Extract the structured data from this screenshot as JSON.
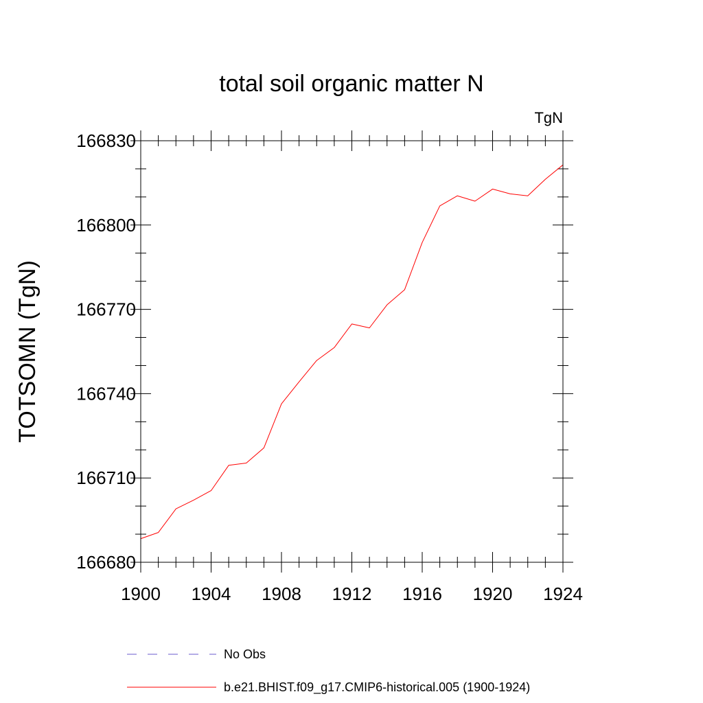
{
  "chart_data": {
    "type": "line",
    "title": "total soil organic matter N",
    "units_label": "TgN",
    "ylabel": "TOTSOMN  (TgN)",
    "xlabel": "",
    "xlim": [
      1900,
      1924
    ],
    "ylim": [
      166680,
      166830
    ],
    "x_ticks": [
      1900,
      1904,
      1908,
      1912,
      1916,
      1920,
      1924
    ],
    "y_ticks": [
      166680,
      166710,
      166740,
      166770,
      166800,
      166830
    ],
    "x_minor_step": 1,
    "y_minor_step": 10,
    "grid": false,
    "x": [
      1900,
      1901,
      1902,
      1903,
      1904,
      1905,
      1906,
      1907,
      1908,
      1909,
      1910,
      1911,
      1912,
      1913,
      1914,
      1915,
      1916,
      1917,
      1918,
      1919,
      1920,
      1921,
      1922,
      1923,
      1924
    ],
    "series": [
      {
        "name": "b.e21.BHIST.f09_g17.CMIP6-historical.005 (1900-1924)",
        "color": "#ff0000",
        "style": "solid",
        "values": [
          166688.4,
          166690.6,
          166699.0,
          166702.1,
          166705.5,
          166714.5,
          166715.3,
          166720.7,
          166736.4,
          166744.2,
          166751.8,
          166756.4,
          166764.8,
          166763.4,
          166771.6,
          166777.0,
          166793.8,
          166806.8,
          166810.4,
          166808.5,
          166812.8,
          166811.1,
          166810.4,
          166816.3,
          166821.4
        ]
      }
    ],
    "legend": {
      "placement": "bottom",
      "entries": [
        {
          "label": "No Obs",
          "color": "#6a5acd",
          "style": "dashed"
        },
        {
          "label": "b.e21.BHIST.f09_g17.CMIP6-historical.005 (1900-1924)",
          "color": "#ff0000",
          "style": "solid"
        }
      ]
    }
  }
}
